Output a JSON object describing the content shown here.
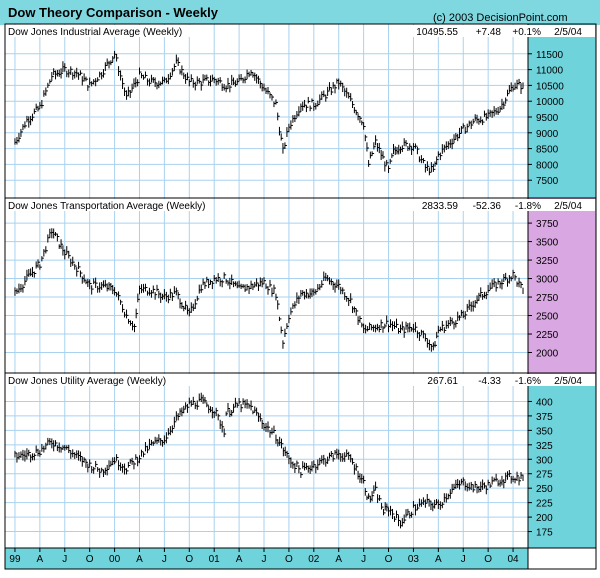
{
  "header": {
    "title": "Dow Theory Comparison - Weekly",
    "copyright": "(c) 2003 DecisionPoint.com"
  },
  "colors": {
    "header_bg": "#7fd8e0",
    "axis_bg": "#6fd3dc",
    "axis_bg_highlight": "#d9a7e1",
    "grid": "#a9d2f0",
    "bars": "#000000"
  },
  "x_axis": {
    "ticks": [
      "99",
      "A",
      "J",
      "O",
      "00",
      "A",
      "J",
      "O",
      "01",
      "A",
      "J",
      "O",
      "02",
      "A",
      "J",
      "O",
      "03",
      "A",
      "J",
      "O",
      "04"
    ]
  },
  "chart_data": [
    {
      "type": "bar",
      "style": "ohlc-weekly",
      "name": "Dow Jones Industrial Average (Weekly)",
      "title": "Dow Jones Industrial Average (Weekly)",
      "last": "10495.55",
      "change": "+7.48",
      "pct": "+0.1%",
      "date": "2/5/04",
      "ylim": [
        7000,
        12000
      ],
      "yticks": [
        7500,
        8000,
        8500,
        9000,
        9500,
        10000,
        10500,
        11000,
        11500
      ],
      "x": [
        1999.0,
        1999.12,
        1999.25,
        1999.37,
        1999.5,
        1999.62,
        1999.75,
        1999.87,
        2000.0,
        2000.12,
        2000.25,
        2000.37,
        2000.5,
        2000.62,
        2000.75,
        2000.87,
        2001.0,
        2001.12,
        2001.25,
        2001.37,
        2001.5,
        2001.62,
        2001.69,
        2001.75,
        2001.87,
        2002.0,
        2002.12,
        2002.25,
        2002.37,
        2002.5,
        2002.55,
        2002.62,
        2002.75,
        2002.8,
        2002.87,
        2003.0,
        2003.12,
        2003.2,
        2003.25,
        2003.37,
        2003.5,
        2003.62,
        2003.75,
        2003.87,
        2004.0,
        2004.1
      ],
      "values": [
        8700,
        9400,
        9800,
        10800,
        11000,
        10900,
        10500,
        10900,
        11500,
        10100,
        10800,
        10600,
        10600,
        11200,
        10600,
        10600,
        10700,
        10500,
        10600,
        11000,
        10400,
        9900,
        8400,
        9200,
        9900,
        9900,
        10200,
        10600,
        10000,
        9300,
        8000,
        8700,
        7800,
        8400,
        8600,
        8600,
        7900,
        7800,
        8300,
        8700,
        9100,
        9400,
        9500,
        9800,
        10500,
        10496
      ]
    },
    {
      "type": "bar",
      "style": "ohlc-weekly",
      "name": "Dow Jones Transportation Average (Weekly)",
      "title": "Dow Jones Transportation Average (Weekly)",
      "last": "2833.59",
      "change": "-52.36",
      "pct": "-1.8%",
      "date": "2/5/04",
      "ylim": [
        1750,
        3900
      ],
      "yticks": [
        2000,
        2250,
        2500,
        2750,
        3000,
        3250,
        3500,
        3750
      ],
      "x": [
        1999.0,
        1999.12,
        1999.25,
        1999.37,
        1999.5,
        1999.62,
        1999.75,
        1999.87,
        2000.0,
        2000.12,
        2000.2,
        2000.25,
        2000.37,
        2000.5,
        2000.62,
        2000.75,
        2000.87,
        2001.0,
        2001.12,
        2001.25,
        2001.37,
        2001.5,
        2001.62,
        2001.69,
        2001.75,
        2001.87,
        2002.0,
        2002.12,
        2002.25,
        2002.37,
        2002.5,
        2002.62,
        2002.75,
        2002.87,
        2003.0,
        2003.12,
        2003.2,
        2003.25,
        2003.37,
        2003.5,
        2003.62,
        2003.75,
        2003.87,
        2004.0,
        2004.1
      ],
      "values": [
        2800,
        3000,
        3200,
        3650,
        3350,
        3150,
        2900,
        2900,
        2850,
        2500,
        2350,
        2850,
        2850,
        2750,
        2800,
        2500,
        2900,
        3000,
        3000,
        2850,
        2900,
        2950,
        2800,
        2150,
        2500,
        2800,
        2800,
        3000,
        2900,
        2700,
        2300,
        2350,
        2400,
        2300,
        2350,
        2200,
        2050,
        2300,
        2400,
        2500,
        2700,
        2850,
        2950,
        3050,
        2834
      ]
    },
    {
      "type": "bar",
      "style": "ohlc-weekly",
      "name": "Dow Jones Utility Average (Weekly)",
      "title": "Dow Jones Utility Average (Weekly)",
      "last": "267.61",
      "change": "-4.33",
      "pct": "-1.6%",
      "date": "2/5/04",
      "ylim": [
        150,
        425
      ],
      "yticks": [
        175,
        200,
        225,
        250,
        275,
        300,
        325,
        350,
        375,
        400
      ],
      "x": [
        1999.0,
        1999.12,
        1999.25,
        1999.37,
        1999.5,
        1999.62,
        1999.75,
        1999.87,
        2000.0,
        2000.12,
        2000.25,
        2000.37,
        2000.5,
        2000.62,
        2000.75,
        2000.87,
        2001.0,
        2001.1,
        2001.12,
        2001.25,
        2001.37,
        2001.5,
        2001.62,
        2001.75,
        2001.87,
        2002.0,
        2002.12,
        2002.25,
        2002.37,
        2002.5,
        2002.55,
        2002.62,
        2002.7,
        2002.75,
        2002.87,
        2003.0,
        2003.12,
        2003.25,
        2003.37,
        2003.5,
        2003.62,
        2003.75,
        2003.87,
        2004.0,
        2004.1
      ],
      "values": [
        305,
        308,
        315,
        330,
        320,
        305,
        290,
        280,
        300,
        285,
        305,
        325,
        335,
        370,
        395,
        400,
        385,
        350,
        380,
        395,
        390,
        360,
        340,
        300,
        280,
        290,
        300,
        310,
        300,
        260,
        230,
        245,
        210,
        215,
        190,
        215,
        225,
        220,
        245,
        260,
        250,
        255,
        265,
        270,
        268
      ]
    }
  ]
}
